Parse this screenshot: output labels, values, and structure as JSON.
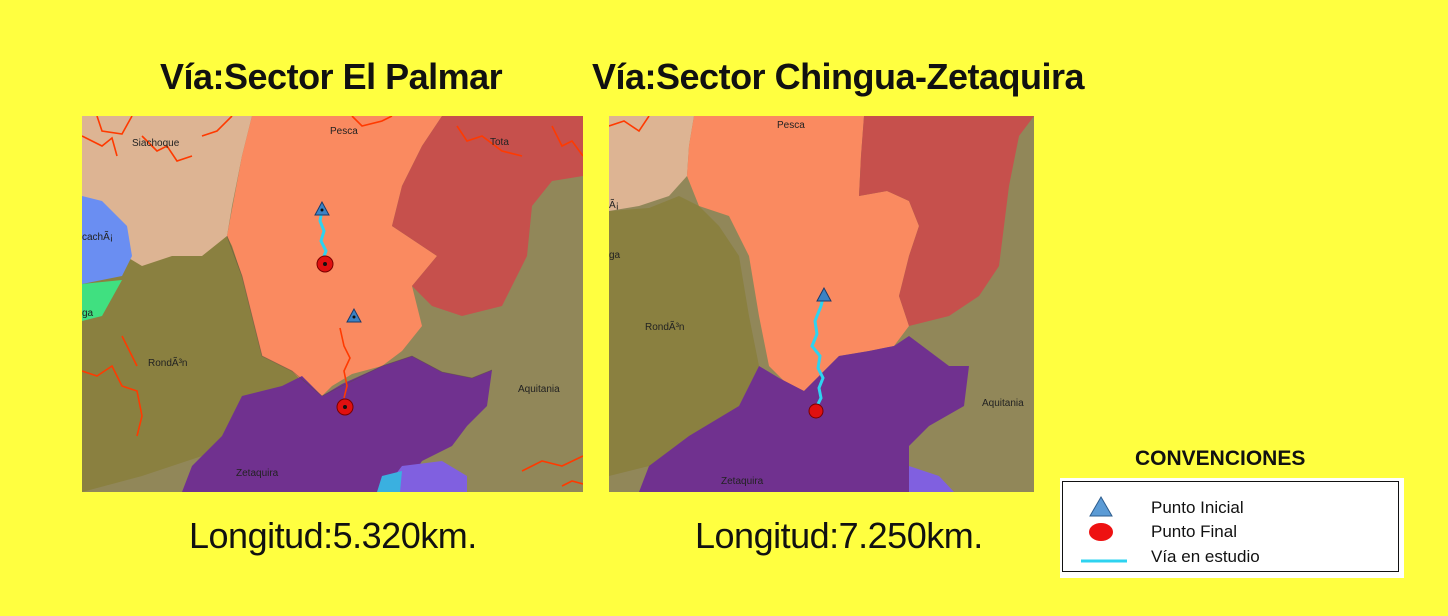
{
  "panels": [
    {
      "title": "Vía:Sector El Palmar",
      "length": "Longitud:5.320km.",
      "labels": {
        "sia": "Siachoque",
        "pesca": "Pesca",
        "tota": "Tota",
        "cucha": "cachÃ¡",
        "ga": "ga",
        "rondon": "RondÃ³n",
        "aquitania": "Aquitania",
        "zetaquira": "Zetaquira"
      }
    },
    {
      "title": "Vía:Sector Chingua-Zetaquira",
      "length": "Longitud:7.250km.",
      "labels": {
        "pesca": "Pesca",
        "a": "Ã¡",
        "ga": "ga",
        "rondon": "RondÃ³n",
        "aquitania": "Aquitania",
        "zetaquira": "Zetaquira"
      }
    }
  ],
  "legend": {
    "title": "CONVENCIONES",
    "items": [
      {
        "label": "Punto Inicial",
        "icon": "triangle-icon"
      },
      {
        "label": "Punto Final",
        "icon": "red-circle-icon"
      },
      {
        "label": "Vía en estudio",
        "icon": "cyan-line-icon"
      }
    ]
  },
  "colors": {
    "background": "#ffff40",
    "pesca": "#fa8a60",
    "tota": "#c6504c",
    "siachoque": "#ddb493",
    "olive": "#8a8040",
    "aquitania": "#918759",
    "zetaquira": "#70318f",
    "blue_region": "#6a8ef2",
    "green_region": "#40e080",
    "road_study": "#2ed3f0",
    "roads": "#ff3a00",
    "start_point": "#3b82c4",
    "end_point": "#e01010"
  }
}
